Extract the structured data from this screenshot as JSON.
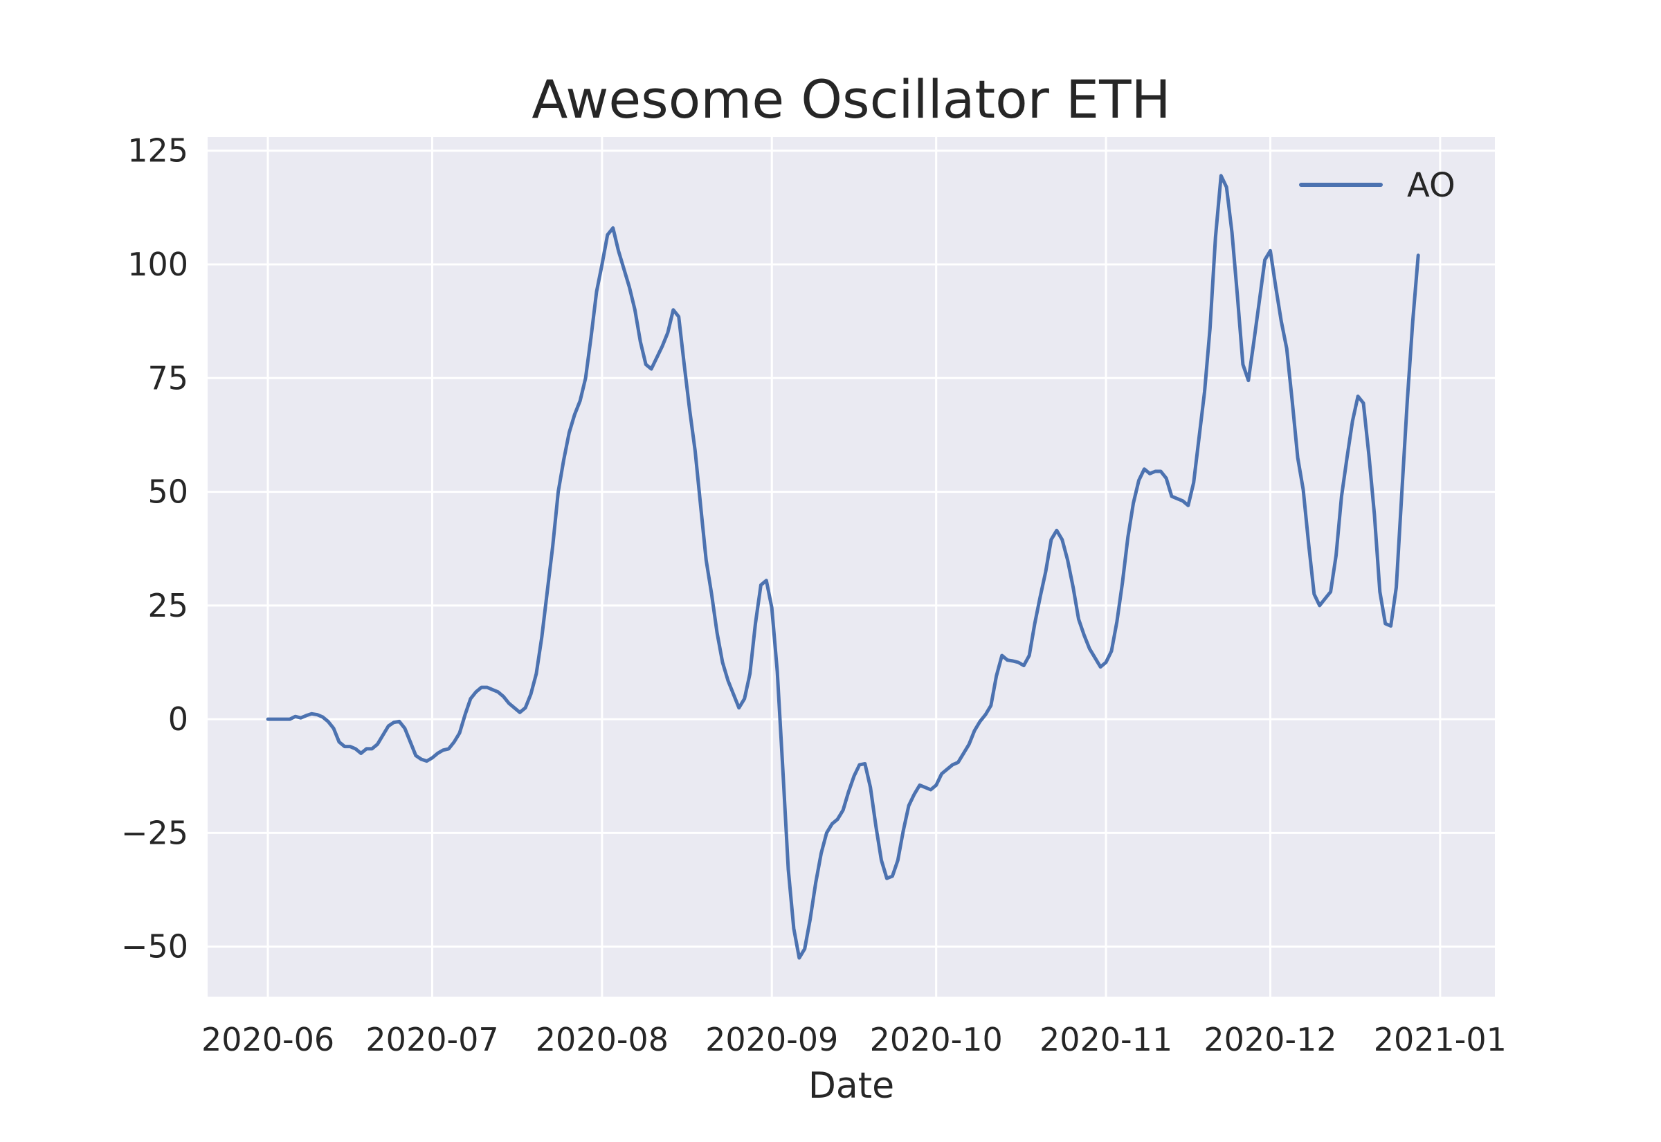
{
  "chart_data": {
    "type": "line",
    "title": "Awesome Oscillator ETH",
    "xlabel": "Date",
    "ylabel": "",
    "x_ticks": [
      "2020-06",
      "2020-07",
      "2020-08",
      "2020-09",
      "2020-10",
      "2020-11",
      "2020-12",
      "2021-01"
    ],
    "y_ticks": [
      -50,
      -25,
      0,
      25,
      50,
      75,
      100,
      125
    ],
    "ylim": [
      -61,
      128
    ],
    "xlim": [
      "2020-05-21",
      "2021-01-11"
    ],
    "grid": true,
    "legend_position": "top-right",
    "colors": {
      "background": "#eaeaf2",
      "grid": "#ffffff",
      "series": "#4c72b0"
    },
    "series": [
      {
        "name": "AO",
        "points": [
          [
            "2020-06-01",
            0.0
          ],
          [
            "2020-06-05",
            0.0
          ],
          [
            "2020-06-06",
            0.6
          ],
          [
            "2020-06-07",
            0.3
          ],
          [
            "2020-06-08",
            0.8
          ],
          [
            "2020-06-09",
            1.2
          ],
          [
            "2020-06-10",
            1.0
          ],
          [
            "2020-06-11",
            0.5
          ],
          [
            "2020-06-12",
            -0.5
          ],
          [
            "2020-06-13",
            -2.0
          ],
          [
            "2020-06-14",
            -5.0
          ],
          [
            "2020-06-15",
            -6.0
          ],
          [
            "2020-06-16",
            -6.0
          ],
          [
            "2020-06-17",
            -6.5
          ],
          [
            "2020-06-18",
            -7.5
          ],
          [
            "2020-06-19",
            -6.5
          ],
          [
            "2020-06-20",
            -6.5
          ],
          [
            "2020-06-21",
            -5.5
          ],
          [
            "2020-06-22",
            -3.5
          ],
          [
            "2020-06-23",
            -1.5
          ],
          [
            "2020-06-24",
            -0.7
          ],
          [
            "2020-06-25",
            -0.5
          ],
          [
            "2020-06-26",
            -2.0
          ],
          [
            "2020-06-27",
            -5.0
          ],
          [
            "2020-06-28",
            -8.0
          ],
          [
            "2020-06-29",
            -8.8
          ],
          [
            "2020-06-30",
            -9.2
          ],
          [
            "2020-07-01",
            -8.5
          ],
          [
            "2020-07-02",
            -7.5
          ],
          [
            "2020-07-03",
            -6.8
          ],
          [
            "2020-07-04",
            -6.5
          ],
          [
            "2020-07-05",
            -5.0
          ],
          [
            "2020-07-06",
            -3.0
          ],
          [
            "2020-07-07",
            1.0
          ],
          [
            "2020-07-08",
            4.5
          ],
          [
            "2020-07-09",
            6.0
          ],
          [
            "2020-07-10",
            7.0
          ],
          [
            "2020-07-11",
            7.0
          ],
          [
            "2020-07-12",
            6.5
          ],
          [
            "2020-07-13",
            6.0
          ],
          [
            "2020-07-14",
            5.0
          ],
          [
            "2020-07-15",
            3.5
          ],
          [
            "2020-07-16",
            2.5
          ],
          [
            "2020-07-17",
            1.5
          ],
          [
            "2020-07-18",
            2.5
          ],
          [
            "2020-07-19",
            5.5
          ],
          [
            "2020-07-20",
            10.0
          ],
          [
            "2020-07-21",
            18.0
          ],
          [
            "2020-07-22",
            28.0
          ],
          [
            "2020-07-23",
            38.0
          ],
          [
            "2020-07-24",
            50.0
          ],
          [
            "2020-07-25",
            57.0
          ],
          [
            "2020-07-26",
            63.0
          ],
          [
            "2020-07-27",
            67.0
          ],
          [
            "2020-07-28",
            70.0
          ],
          [
            "2020-07-29",
            75.0
          ],
          [
            "2020-07-30",
            84.0
          ],
          [
            "2020-07-31",
            94.0
          ],
          [
            "2020-08-01",
            100.0
          ],
          [
            "2020-08-02",
            106.5
          ],
          [
            "2020-08-03",
            108.0
          ],
          [
            "2020-08-04",
            103.0
          ],
          [
            "2020-08-05",
            99.0
          ],
          [
            "2020-08-06",
            95.0
          ],
          [
            "2020-08-07",
            90.0
          ],
          [
            "2020-08-08",
            83.0
          ],
          [
            "2020-08-09",
            78.0
          ],
          [
            "2020-08-10",
            77.0
          ],
          [
            "2020-08-11",
            79.5
          ],
          [
            "2020-08-12",
            82.0
          ],
          [
            "2020-08-13",
            85.0
          ],
          [
            "2020-08-14",
            90.0
          ],
          [
            "2020-08-15",
            88.5
          ],
          [
            "2020-08-16",
            78.0
          ],
          [
            "2020-08-17",
            68.0
          ],
          [
            "2020-08-18",
            59.0
          ],
          [
            "2020-08-19",
            47.0
          ],
          [
            "2020-08-20",
            35.0
          ],
          [
            "2020-08-21",
            27.5
          ],
          [
            "2020-08-22",
            19.0
          ],
          [
            "2020-08-23",
            12.5
          ],
          [
            "2020-08-24",
            8.5
          ],
          [
            "2020-08-25",
            5.5
          ],
          [
            "2020-08-26",
            2.5
          ],
          [
            "2020-08-27",
            4.5
          ],
          [
            "2020-08-28",
            10.0
          ],
          [
            "2020-08-29",
            21.0
          ],
          [
            "2020-08-30",
            29.5
          ],
          [
            "2020-08-31",
            30.5
          ],
          [
            "2020-09-01",
            24.5
          ],
          [
            "2020-09-02",
            10.5
          ],
          [
            "2020-09-03",
            -11.0
          ],
          [
            "2020-09-04",
            -33.0
          ],
          [
            "2020-09-05",
            -46.0
          ],
          [
            "2020-09-06",
            -52.5
          ],
          [
            "2020-09-07",
            -50.5
          ],
          [
            "2020-09-08",
            -44.0
          ],
          [
            "2020-09-09",
            -36.0
          ],
          [
            "2020-09-10",
            -29.5
          ],
          [
            "2020-09-11",
            -25.0
          ],
          [
            "2020-09-12",
            -23.0
          ],
          [
            "2020-09-13",
            -22.0
          ],
          [
            "2020-09-14",
            -20.0
          ],
          [
            "2020-09-15",
            -16.0
          ],
          [
            "2020-09-16",
            -12.5
          ],
          [
            "2020-09-17",
            -10.0
          ],
          [
            "2020-09-18",
            -9.8
          ],
          [
            "2020-09-19",
            -15.0
          ],
          [
            "2020-09-20",
            -23.5
          ],
          [
            "2020-09-21",
            -31.0
          ],
          [
            "2020-09-22",
            -35.0
          ],
          [
            "2020-09-23",
            -34.5
          ],
          [
            "2020-09-24",
            -31.0
          ],
          [
            "2020-09-25",
            -24.5
          ],
          [
            "2020-09-26",
            -19.0
          ],
          [
            "2020-09-27",
            -16.5
          ],
          [
            "2020-09-28",
            -14.5
          ],
          [
            "2020-09-29",
            -15.0
          ],
          [
            "2020-09-30",
            -15.5
          ],
          [
            "2020-10-01",
            -14.5
          ],
          [
            "2020-10-02",
            -12.0
          ],
          [
            "2020-10-03",
            -11.0
          ],
          [
            "2020-10-04",
            -10.0
          ],
          [
            "2020-10-05",
            -9.5
          ],
          [
            "2020-10-06",
            -7.5
          ],
          [
            "2020-10-07",
            -5.5
          ],
          [
            "2020-10-08",
            -2.5
          ],
          [
            "2020-10-09",
            -0.5
          ],
          [
            "2020-10-10",
            1.0
          ],
          [
            "2020-10-11",
            3.0
          ],
          [
            "2020-10-12",
            9.5
          ],
          [
            "2020-10-13",
            14.0
          ],
          [
            "2020-10-14",
            13.0
          ],
          [
            "2020-10-15",
            12.8
          ],
          [
            "2020-10-16",
            12.5
          ],
          [
            "2020-10-17",
            11.8
          ],
          [
            "2020-10-18",
            14.0
          ],
          [
            "2020-10-19",
            21.0
          ],
          [
            "2020-10-20",
            27.0
          ],
          [
            "2020-10-21",
            32.5
          ],
          [
            "2020-10-22",
            39.5
          ],
          [
            "2020-10-23",
            41.5
          ],
          [
            "2020-10-24",
            39.5
          ],
          [
            "2020-10-25",
            35.0
          ],
          [
            "2020-10-26",
            29.0
          ],
          [
            "2020-10-27",
            22.0
          ],
          [
            "2020-10-28",
            18.5
          ],
          [
            "2020-10-29",
            15.5
          ],
          [
            "2020-10-30",
            13.5
          ],
          [
            "2020-10-31",
            11.5
          ],
          [
            "2020-11-01",
            12.5
          ],
          [
            "2020-11-02",
            15.0
          ],
          [
            "2020-11-03",
            21.5
          ],
          [
            "2020-11-04",
            30.0
          ],
          [
            "2020-11-05",
            40.0
          ],
          [
            "2020-11-06",
            47.5
          ],
          [
            "2020-11-07",
            52.5
          ],
          [
            "2020-11-08",
            55.0
          ],
          [
            "2020-11-09",
            54.0
          ],
          [
            "2020-11-10",
            54.5
          ],
          [
            "2020-11-11",
            54.5
          ],
          [
            "2020-11-12",
            53.0
          ],
          [
            "2020-11-13",
            49.0
          ],
          [
            "2020-11-14",
            48.5
          ],
          [
            "2020-11-15",
            48.0
          ],
          [
            "2020-11-16",
            47.0
          ],
          [
            "2020-11-17",
            52.0
          ],
          [
            "2020-11-18",
            62.0
          ],
          [
            "2020-11-19",
            72.0
          ],
          [
            "2020-11-20",
            86.0
          ],
          [
            "2020-11-21",
            106.0
          ],
          [
            "2020-11-22",
            119.5
          ],
          [
            "2020-11-23",
            117.0
          ],
          [
            "2020-11-24",
            107.0
          ],
          [
            "2020-11-25",
            93.0
          ],
          [
            "2020-11-26",
            78.0
          ],
          [
            "2020-11-27",
            74.5
          ],
          [
            "2020-11-28",
            83.0
          ],
          [
            "2020-11-29",
            92.0
          ],
          [
            "2020-11-30",
            101.0
          ],
          [
            "2020-12-01",
            103.0
          ],
          [
            "2020-12-02",
            95.0
          ],
          [
            "2020-12-03",
            87.5
          ],
          [
            "2020-12-04",
            81.5
          ],
          [
            "2020-12-05",
            70.0
          ],
          [
            "2020-12-06",
            57.5
          ],
          [
            "2020-12-07",
            50.5
          ],
          [
            "2020-12-08",
            38.5
          ],
          [
            "2020-12-09",
            27.5
          ],
          [
            "2020-12-10",
            25.0
          ],
          [
            "2020-12-11",
            26.5
          ],
          [
            "2020-12-12",
            28.0
          ],
          [
            "2020-12-13",
            36.0
          ],
          [
            "2020-12-14",
            49.0
          ],
          [
            "2020-12-15",
            57.5
          ],
          [
            "2020-12-16",
            65.5
          ],
          [
            "2020-12-17",
            71.0
          ],
          [
            "2020-12-18",
            69.5
          ],
          [
            "2020-12-19",
            58.0
          ],
          [
            "2020-12-20",
            45.0
          ],
          [
            "2020-12-21",
            28.0
          ],
          [
            "2020-12-22",
            21.0
          ],
          [
            "2020-12-23",
            20.5
          ],
          [
            "2020-12-24",
            29.0
          ],
          [
            "2020-12-25",
            49.5
          ],
          [
            "2020-12-26",
            70.0
          ],
          [
            "2020-12-27",
            87.5
          ],
          [
            "2020-12-28",
            102.0
          ]
        ]
      }
    ]
  }
}
